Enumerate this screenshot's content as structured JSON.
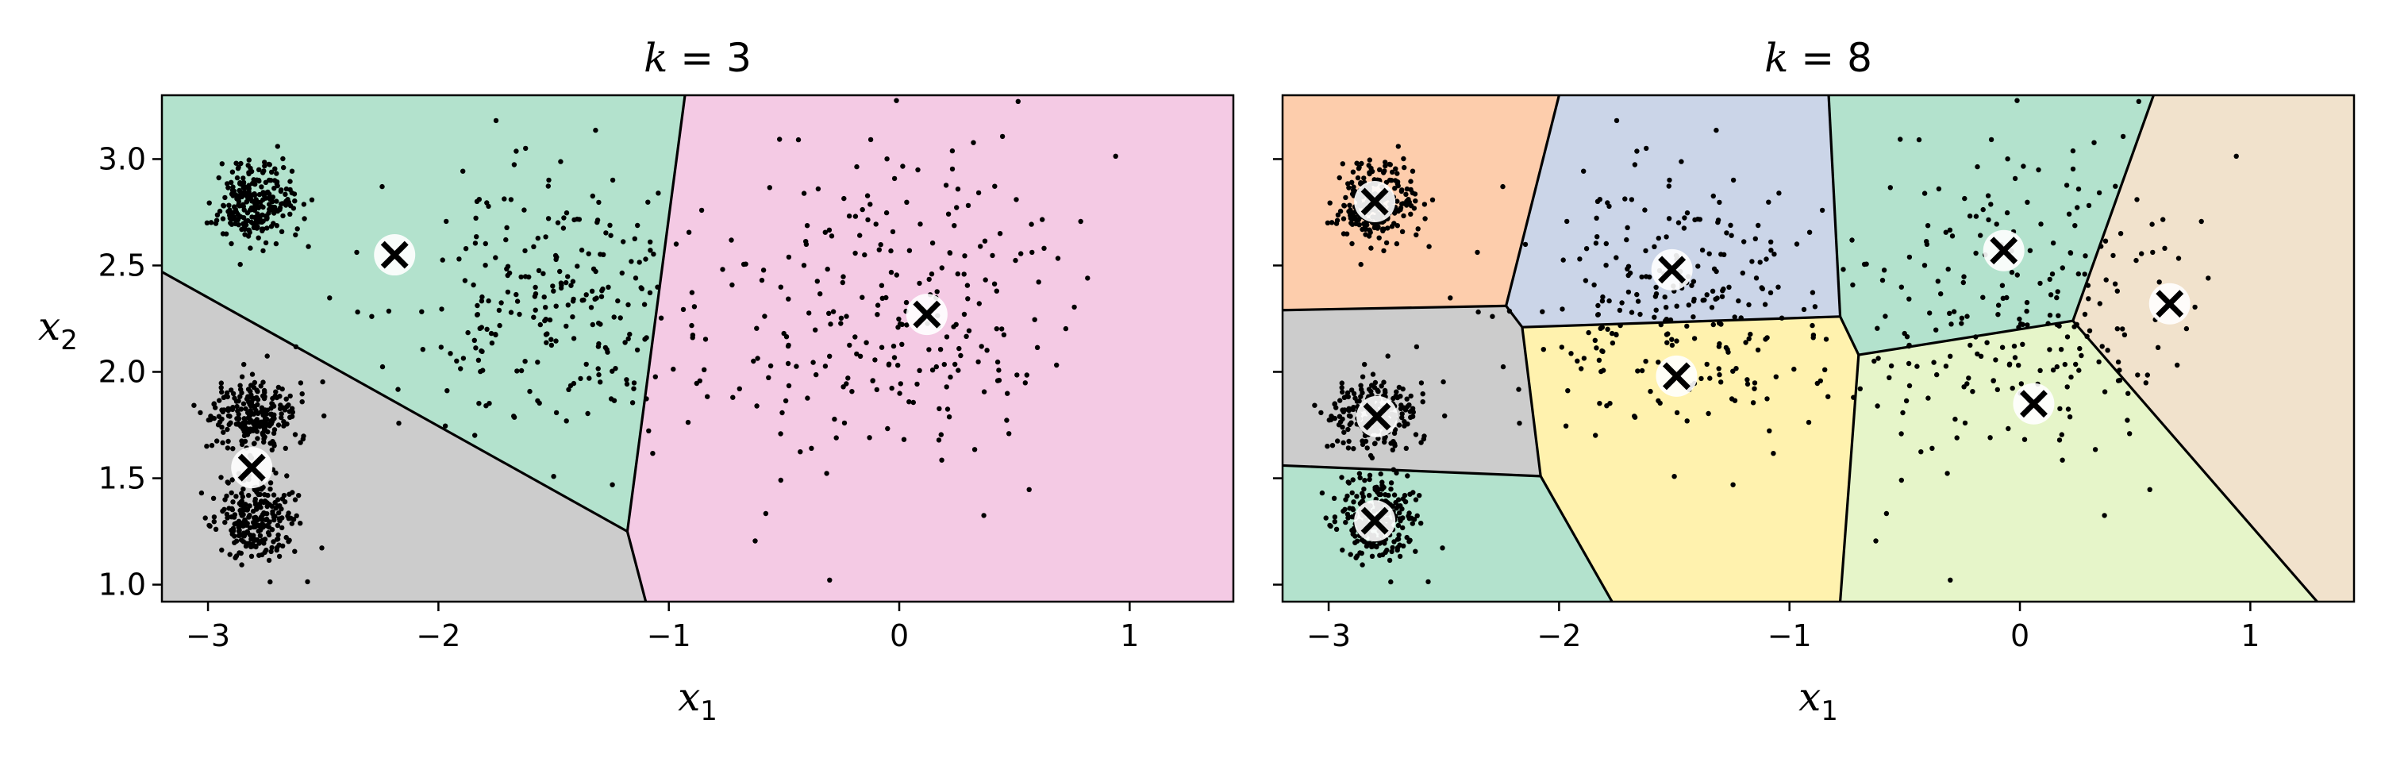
{
  "chart_data": [
    {
      "type": "scatter",
      "title": "k = 3",
      "title_var": "k",
      "title_eq": "= 3",
      "xlabel": "x",
      "xlabel_sub": "1",
      "ylabel": "x",
      "ylabel_sub": "2",
      "xlim": [
        -3.2,
        1.45
      ],
      "ylim": [
        0.92,
        3.3
      ],
      "xticks": [
        -3,
        -2,
        -1,
        0,
        1
      ],
      "xtick_labels": [
        "−3",
        "−2",
        "−1",
        "0",
        "1"
      ],
      "yticks": [
        1.0,
        1.5,
        2.0,
        2.5,
        3.0
      ],
      "ytick_labels": [
        "1.0",
        "1.5",
        "2.0",
        "2.5",
        "3.0"
      ],
      "centroids": [
        [
          -2.19,
          2.55
        ],
        [
          -2.81,
          1.55
        ],
        [
          0.12,
          2.27
        ]
      ],
      "regions": [
        {
          "color": "#b3e2cd",
          "polygon": [
            [
              -3.2,
              3.3
            ],
            [
              -0.93,
              3.3
            ],
            [
              -1.18,
              1.25
            ],
            [
              -3.2,
              2.47
            ]
          ]
        },
        {
          "color": "#cccccc",
          "polygon": [
            [
              -3.2,
              2.47
            ],
            [
              -1.18,
              1.25
            ],
            [
              -1.1,
              0.92
            ],
            [
              -3.2,
              0.92
            ]
          ]
        },
        {
          "color": "#f4cae4",
          "polygon": [
            [
              -0.93,
              3.3
            ],
            [
              1.45,
              3.3
            ],
            [
              1.45,
              0.92
            ],
            [
              -1.1,
              0.92
            ],
            [
              -1.18,
              1.25
            ]
          ]
        }
      ],
      "boundaries": [
        [
          [
            -3.2,
            2.47
          ],
          [
            -1.18,
            1.25
          ]
        ],
        [
          [
            -0.93,
            3.3
          ],
          [
            -1.18,
            1.25
          ]
        ],
        [
          [
            -1.18,
            1.25
          ],
          [
            -1.1,
            0.92
          ]
        ]
      ],
      "clusters": [
        {
          "cx": -2.8,
          "cy": 2.8,
          "sx": 0.09,
          "sy": 0.09,
          "n": 250
        },
        {
          "cx": -2.8,
          "cy": 1.78,
          "sx": 0.09,
          "sy": 0.09,
          "n": 250
        },
        {
          "cx": -2.8,
          "cy": 1.3,
          "sx": 0.09,
          "sy": 0.09,
          "n": 250
        },
        {
          "cx": -1.5,
          "cy": 2.3,
          "sx": 0.3,
          "sy": 0.3,
          "n": 250
        },
        {
          "cx": 0.0,
          "cy": 2.3,
          "sx": 0.4,
          "sy": 0.4,
          "n": 250
        }
      ]
    },
    {
      "type": "scatter",
      "title": "k = 8",
      "title_var": "k",
      "title_eq": "= 8",
      "xlabel": "x",
      "xlabel_sub": "1",
      "xlim": [
        -3.2,
        1.45
      ],
      "ylim": [
        0.92,
        3.3
      ],
      "xticks": [
        -3,
        -2,
        -1,
        0,
        1
      ],
      "xtick_labels": [
        "−3",
        "−2",
        "−1",
        "0",
        "1"
      ],
      "yticks": [
        1.0,
        1.5,
        2.0,
        2.5,
        3.0
      ],
      "centroids": [
        [
          -2.8,
          2.8
        ],
        [
          -2.79,
          1.79
        ],
        [
          -2.8,
          1.3
        ],
        [
          -1.51,
          2.48
        ],
        [
          -1.49,
          1.98
        ],
        [
          -0.07,
          2.57
        ],
        [
          0.06,
          1.85
        ],
        [
          0.65,
          2.32
        ]
      ],
      "regions": [
        {
          "color": "#fdcdac",
          "polygon": [
            [
              -3.2,
              3.3
            ],
            [
              -2.0,
              3.3
            ],
            [
              -2.23,
              2.31
            ],
            [
              -3.2,
              2.29
            ]
          ]
        },
        {
          "color": "#cbd5e8",
          "polygon": [
            [
              -2.0,
              3.3
            ],
            [
              -0.83,
              3.3
            ],
            [
              -0.78,
              2.26
            ],
            [
              -2.16,
              2.21
            ],
            [
              -2.23,
              2.31
            ]
          ]
        },
        {
          "color": "#b3e2cd",
          "polygon": [
            [
              -0.83,
              3.3
            ],
            [
              0.58,
              3.3
            ],
            [
              0.23,
              2.24
            ],
            [
              -0.7,
              2.08
            ],
            [
              -0.78,
              2.26
            ]
          ]
        },
        {
          "color": "#f1e2cc",
          "polygon": [
            [
              0.58,
              3.3
            ],
            [
              1.45,
              3.3
            ],
            [
              1.45,
              0.92
            ],
            [
              1.29,
              0.92
            ],
            [
              0.23,
              2.24
            ]
          ]
        },
        {
          "color": "#cccccc",
          "polygon": [
            [
              -3.2,
              2.29
            ],
            [
              -2.23,
              2.31
            ],
            [
              -2.16,
              2.21
            ],
            [
              -2.08,
              1.51
            ],
            [
              -3.2,
              1.56
            ]
          ]
        },
        {
          "color": "#fff2ae",
          "polygon": [
            [
              -2.16,
              2.21
            ],
            [
              -0.78,
              2.26
            ],
            [
              -0.7,
              2.08
            ],
            [
              -0.78,
              0.92
            ],
            [
              -1.77,
              0.92
            ],
            [
              -2.08,
              1.51
            ]
          ]
        },
        {
          "color": "#e6f5c9",
          "polygon": [
            [
              -0.7,
              2.08
            ],
            [
              0.23,
              2.24
            ],
            [
              1.29,
              0.92
            ],
            [
              -0.78,
              0.92
            ]
          ]
        },
        {
          "color": "#b3e2cd",
          "polygon": [
            [
              -3.2,
              1.56
            ],
            [
              -2.08,
              1.51
            ],
            [
              -1.77,
              0.92
            ],
            [
              -3.2,
              0.92
            ]
          ]
        }
      ],
      "boundaries": [
        [
          [
            -2.0,
            3.3
          ],
          [
            -2.23,
            2.31
          ]
        ],
        [
          [
            -3.2,
            2.29
          ],
          [
            -2.23,
            2.31
          ]
        ],
        [
          [
            -2.23,
            2.31
          ],
          [
            -2.16,
            2.21
          ]
        ],
        [
          [
            -2.16,
            2.21
          ],
          [
            -0.78,
            2.26
          ]
        ],
        [
          [
            -0.83,
            3.3
          ],
          [
            -0.78,
            2.26
          ]
        ],
        [
          [
            -0.78,
            2.26
          ],
          [
            -0.7,
            2.08
          ]
        ],
        [
          [
            -0.7,
            2.08
          ],
          [
            0.23,
            2.24
          ]
        ],
        [
          [
            0.58,
            3.3
          ],
          [
            0.23,
            2.24
          ]
        ],
        [
          [
            0.23,
            2.24
          ],
          [
            1.29,
            0.92
          ]
        ],
        [
          [
            -0.7,
            2.08
          ],
          [
            -0.78,
            0.92
          ]
        ],
        [
          [
            -2.16,
            2.21
          ],
          [
            -2.08,
            1.51
          ]
        ],
        [
          [
            -3.2,
            1.56
          ],
          [
            -2.08,
            1.51
          ]
        ],
        [
          [
            -2.08,
            1.51
          ],
          [
            -1.77,
            0.92
          ]
        ]
      ],
      "clusters": [
        {
          "cx": -2.8,
          "cy": 2.8,
          "sx": 0.09,
          "sy": 0.09,
          "n": 250
        },
        {
          "cx": -2.8,
          "cy": 1.78,
          "sx": 0.09,
          "sy": 0.09,
          "n": 250
        },
        {
          "cx": -2.8,
          "cy": 1.3,
          "sx": 0.09,
          "sy": 0.09,
          "n": 250
        },
        {
          "cx": -1.5,
          "cy": 2.3,
          "sx": 0.3,
          "sy": 0.3,
          "n": 250
        },
        {
          "cx": 0.0,
          "cy": 2.3,
          "sx": 0.4,
          "sy": 0.4,
          "n": 250
        }
      ]
    }
  ]
}
